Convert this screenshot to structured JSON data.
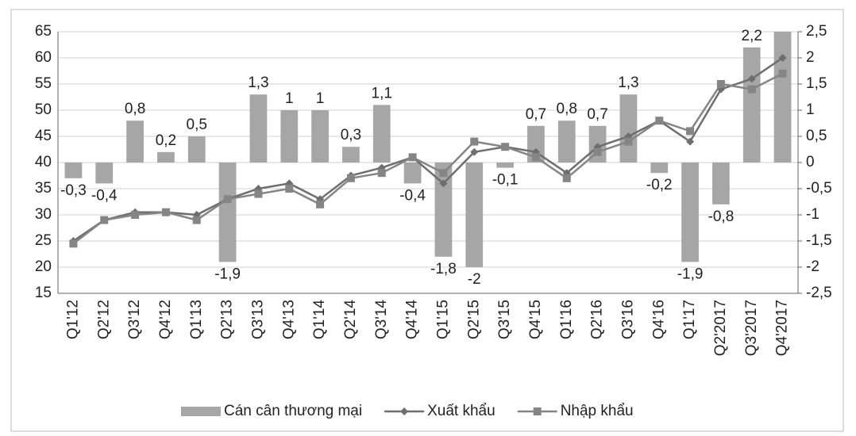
{
  "chart_data": {
    "type": "combo",
    "categories": [
      "Q1'12",
      "Q2'12",
      "Q3'12",
      "Q4'12",
      "Q1'13",
      "Q2'13",
      "Q3'13",
      "Q4'13",
      "Q1'14",
      "Q2'14",
      "Q3'14",
      "Q4'14",
      "Q1'15",
      "Q2'15",
      "Q3'15",
      "Q4'15",
      "Q1'16",
      "Q2'16",
      "Q3'16",
      "Q4'16",
      "Q1'17",
      "Q2'2017",
      "Q3'2017",
      "Q4'2017"
    ],
    "series": [
      {
        "name": "Cán cân thương mại",
        "type": "bar",
        "axis": "y2",
        "color": "#a6a6a6",
        "values": [
          -0.3,
          -0.4,
          0.8,
          0.2,
          0.5,
          -1.9,
          1.3,
          1,
          1,
          0.3,
          1.1,
          -0.4,
          -1.8,
          -2,
          -0.1,
          0.7,
          0.8,
          0.7,
          1.3,
          -0.2,
          -1.9,
          -0.8,
          2.2,
          2.5
        ],
        "value_labels": [
          "-0,3",
          "-0,4",
          "0,8",
          "0,2",
          "0,5",
          "-1,9",
          "1,3",
          "1",
          "1",
          "0,3",
          "1,1",
          "-0,4",
          "-1,8",
          "-2",
          "-0,1",
          "0,7",
          "0,8",
          "0,7",
          "1,3",
          "-0,2",
          "-1,9",
          "-0,8",
          "2,2",
          null
        ]
      },
      {
        "name": "Xuất khẩu",
        "type": "line",
        "marker": "diamond",
        "color": "#6e6e6e",
        "values": [
          25,
          29,
          30.5,
          30.5,
          30,
          33,
          35,
          36,
          33,
          37.5,
          39,
          41,
          36,
          42,
          43,
          42,
          38,
          43,
          45,
          48,
          44,
          54,
          56,
          60
        ]
      },
      {
        "name": "Nhập khẩu",
        "type": "line",
        "marker": "square",
        "color": "#858585",
        "values": [
          24.5,
          29,
          30,
          30.5,
          29,
          33,
          34,
          35,
          32,
          37,
          38,
          41,
          38,
          44,
          43,
          41,
          37,
          42,
          44,
          48,
          46,
          55,
          54,
          57
        ]
      }
    ],
    "ylim": [
      15,
      65
    ],
    "yticks": [
      15,
      20,
      25,
      30,
      35,
      40,
      45,
      50,
      55,
      60,
      65
    ],
    "y2lim": [
      -2.5,
      2.5
    ],
    "y2ticks": [
      {
        "value": -2.5,
        "label": "-2,5"
      },
      -2,
      {
        "value": -1.5,
        "label": "-1,5"
      },
      -1,
      {
        "value": -0.5,
        "label": "-0,5"
      },
      0,
      {
        "value": 0.5,
        "label": "0,5"
      },
      1,
      {
        "value": 1.5,
        "label": "1,5"
      },
      2,
      {
        "value": 2.5,
        "label": "2,5"
      }
    ],
    "grid": true,
    "legend": "bottom"
  }
}
